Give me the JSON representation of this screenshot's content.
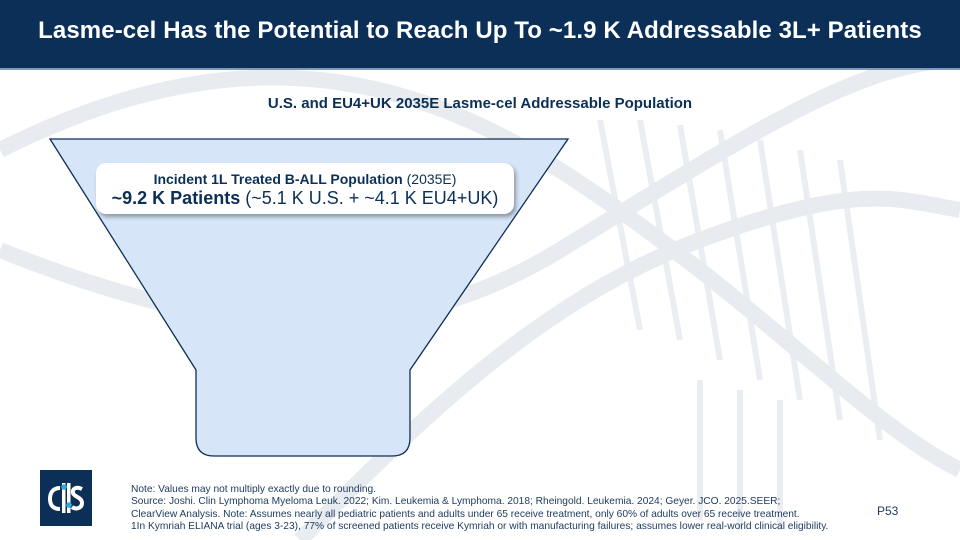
{
  "header": {
    "title": "Lasme-cel Has the Potential to Reach Up To ~1.9 K Addressable 3L+ Patients"
  },
  "subtitle": "U.S. and EU4+UK 2035E Lasme-cel Addressable Population",
  "funnel": {
    "fill_color": "#d6e6f8",
    "stroke_color": "#0b2f57",
    "label": {
      "line1_bold": "Incident 1L Treated B-ALL Population",
      "line1_normal": " (2035E)",
      "line2_bold": "~9.2 K Patients",
      "line2_normal": " (~5.1 K U.S. + ~4.1 K EU4+UK)"
    }
  },
  "footnotes": [
    "Note: Values may not multiply exactly due to rounding.",
    "Source: Joshi. Clin Lymphoma Myeloma Leuk. 2022; Kim. Leukemia & Lymphoma. 2018; Rheingold. Leukemia. 2024; Geyer. JCO. 2025.SEER;",
    "ClearView Analysis. Note: Assumes nearly all pediatric patients and adults under 65 receive treatment, only 60% of adults over 65 receive treatment.",
    "1In Kymriah ELIANA trial (ages 3-23), 77% of screened patients receive Kymriah or with manufacturing failures; assumes lower real-world clinical eligibility."
  ],
  "page_number": "P53",
  "logo": {
    "icon": "company-logo-icon",
    "color": "#0b2f57"
  }
}
